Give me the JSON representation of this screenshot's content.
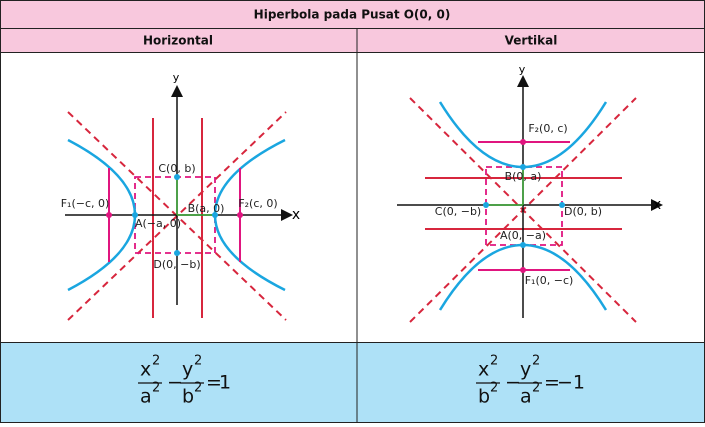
{
  "header": {
    "title": "Hiperbola pada Pusat O(0, 0)"
  },
  "columns": [
    {
      "name": "Horizontal",
      "axis_x": "x",
      "axis_y": "y",
      "labels": [
        "F₁(−c, 0)",
        "A(−a, 0)",
        "B(a, 0)",
        "F₂(c, 0)",
        "C(0, b)",
        "D(0, −b)"
      ],
      "formula": {
        "num1": "x",
        "den1": "a",
        "num2": "y",
        "den2": "b",
        "power": "2",
        "minus": "−",
        "equals": "=",
        "rhs": "1"
      }
    },
    {
      "name": "Vertikal",
      "axis_x": "x",
      "axis_y": "y",
      "labels": [
        "F₂(0, c)",
        "B(0, a)",
        "C(0, −b)",
        "D(0, b)",
        "A(0, −a)",
        "F₁(0, −c)"
      ],
      "formula": {
        "num1": "x",
        "den1": "b",
        "num2": "y",
        "den2": "a",
        "power": "2",
        "minus": "−",
        "equals": "=",
        "rhs": "−1"
      }
    }
  ]
}
